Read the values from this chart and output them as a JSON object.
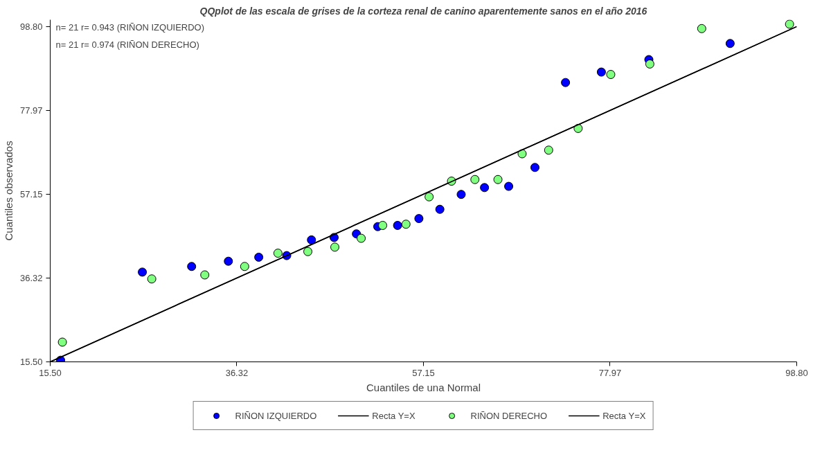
{
  "chart_data": {
    "type": "scatter",
    "title": "QQplot de las escala de grises de la corteza renal de canino aparentemente sanos en el año 2016",
    "xlabel": "Cuantiles de una Normal",
    "ylabel": "Cuantiles observados",
    "annotations": [
      "n= 21 r= 0.943 (RIÑON IZQUIERDO)",
      "n= 21 r= 0.974 (RIÑON DERECHO)"
    ],
    "xlim": [
      15.5,
      98.8
    ],
    "ylim": [
      15.5,
      100.5
    ],
    "xticks": [
      {
        "value": 15.5,
        "label": "15.50"
      },
      36.32,
      57.15,
      77.97,
      {
        "value": 98.8,
        "label": "98.80"
      }
    ],
    "yticks": [
      {
        "value": 15.5,
        "label": "15.50"
      },
      36.32,
      57.15,
      77.97,
      {
        "value": 98.8,
        "label": "98.80"
      }
    ],
    "grid": false,
    "legend": "bottom",
    "marker": "circle",
    "series": [
      {
        "name": "RIÑON IZQUIERDO",
        "color": "#0000ff",
        "x": [
          16.66,
          25.78,
          31.28,
          35.38,
          38.77,
          41.89,
          44.65,
          47.18,
          49.67,
          52.05,
          54.26,
          56.64,
          58.98,
          61.36,
          63.96,
          66.66,
          69.59,
          73.0,
          77.0,
          82.3,
          91.37
        ],
        "values": [
          15.9,
          37.8,
          39.2,
          40.5,
          41.5,
          41.9,
          45.8,
          46.4,
          47.3,
          49.1,
          49.4,
          51.1,
          53.4,
          57.1,
          58.8,
          59.1,
          63.8,
          84.9,
          87.5,
          90.6,
          94.6
        ]
      },
      {
        "name": "Recta Y=X",
        "type": "line",
        "marker": "none",
        "color": "#000000",
        "x": [
          15.5,
          98.8
        ],
        "values": [
          15.5,
          98.8
        ]
      },
      {
        "name": "RIÑON DERECHO",
        "color": "#80ff80",
        "x": [
          16.86,
          26.83,
          32.75,
          37.2,
          40.91,
          44.25,
          47.26,
          50.2,
          52.6,
          55.2,
          57.78,
          60.28,
          62.89,
          65.46,
          68.16,
          71.12,
          74.41,
          78.05,
          82.41,
          88.2,
          98.0
        ],
        "values": [
          20.4,
          36.1,
          37.1,
          39.2,
          42.5,
          42.9,
          44.0,
          46.2,
          49.4,
          49.7,
          56.5,
          60.4,
          60.8,
          60.8,
          67.2,
          68.1,
          73.5,
          86.9,
          89.5,
          98.3,
          99.4
        ]
      },
      {
        "name": "Recta Y=X",
        "type": "line",
        "marker": "none",
        "color": "#000000",
        "x": [
          15.5,
          98.8
        ],
        "values": [
          15.5,
          98.8
        ]
      }
    ]
  }
}
